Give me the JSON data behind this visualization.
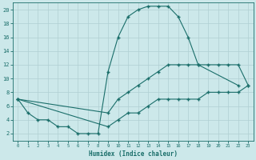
{
  "xlabel": "Humidex (Indice chaleur)",
  "bg_color": "#cce8ea",
  "grid_color": "#b0cfd2",
  "line_color": "#1a6e6a",
  "xlim": [
    -0.5,
    23.5
  ],
  "ylim": [
    1,
    21
  ],
  "xticks": [
    0,
    1,
    2,
    3,
    4,
    5,
    6,
    7,
    8,
    9,
    10,
    11,
    12,
    13,
    14,
    15,
    16,
    17,
    18,
    19,
    20,
    21,
    22,
    23
  ],
  "yticks": [
    2,
    4,
    6,
    8,
    10,
    12,
    14,
    16,
    18,
    20
  ],
  "curve1_x": [
    0,
    1,
    2,
    3,
    4,
    5,
    6,
    7,
    8,
    9,
    10,
    11,
    12,
    13,
    14,
    15,
    16,
    17,
    18,
    22
  ],
  "curve1_y": [
    7,
    5,
    4,
    4,
    3,
    3,
    2,
    2,
    2,
    11,
    16,
    19,
    20,
    20.5,
    20.5,
    20.5,
    19,
    16,
    12,
    9
  ],
  "curve2_x": [
    0,
    9,
    10,
    11,
    12,
    13,
    14,
    15,
    16,
    17,
    18,
    19,
    20,
    21,
    22,
    23
  ],
  "curve2_y": [
    7,
    5,
    7,
    8,
    9,
    10,
    11,
    12,
    12,
    12,
    12,
    12,
    12,
    12,
    12,
    9
  ],
  "curve3_x": [
    0,
    9,
    10,
    11,
    12,
    13,
    14,
    15,
    16,
    17,
    18,
    19,
    20,
    21,
    22,
    23
  ],
  "curve3_y": [
    7,
    3,
    4,
    5,
    5,
    6,
    7,
    7,
    7,
    7,
    7,
    8,
    8,
    8,
    8,
    9
  ]
}
